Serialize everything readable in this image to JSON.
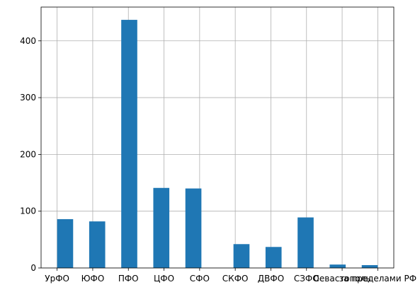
{
  "chart_data": {
    "type": "histogram",
    "bins": [
      0,
      0.45,
      0.9,
      1.35,
      1.8,
      2.25,
      2.7,
      3.15,
      3.6,
      4.05,
      4.5,
      4.95,
      5.4,
      5.85,
      6.3,
      6.75,
      7.2,
      7.65,
      8.1,
      8.55,
      9
    ],
    "values": [
      86,
      0,
      82,
      0,
      437,
      0,
      141,
      0,
      140,
      0,
      0,
      42,
      0,
      37,
      0,
      89,
      0,
      6,
      0,
      5
    ],
    "color": "#1f77b4",
    "xticks": [
      {
        "value": 0,
        "label": "УрФО"
      },
      {
        "value": 1,
        "label": "ЮФО"
      },
      {
        "value": 2,
        "label": "ПФО"
      },
      {
        "value": 3,
        "label": "ЦФО"
      },
      {
        "value": 4,
        "label": "СФО"
      },
      {
        "value": 5,
        "label": "СКФО"
      },
      {
        "value": 6,
        "label": "ДВФО"
      },
      {
        "value": 7,
        "label": "СЗФО"
      },
      {
        "value": 8,
        "label": "Севастополь"
      },
      {
        "value": 9,
        "label": "за пределами РФ"
      }
    ],
    "xlim": [
      -0.45,
      9.45
    ],
    "ylim": [
      0,
      459.5
    ],
    "yticks": [
      0,
      100,
      200,
      300,
      400
    ],
    "grid": true
  }
}
